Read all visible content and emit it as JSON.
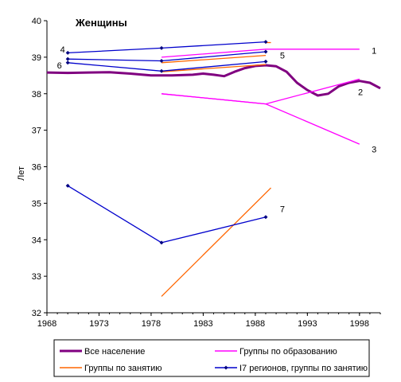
{
  "chart_data": {
    "type": "line",
    "title": "Женщины",
    "xlabel": "",
    "ylabel": "Лет",
    "xlim": [
      1968,
      2000
    ],
    "ylim": [
      32,
      40
    ],
    "x_ticks": [
      "1968",
      "1973",
      "1978",
      "1983",
      "1988",
      "1993",
      "1998"
    ],
    "y_ticks": [
      "32",
      "33",
      "34",
      "35",
      "36",
      "37",
      "38",
      "39",
      "40"
    ],
    "legend": {
      "position": "bottom",
      "entries": [
        {
          "label": "Все население",
          "color": "#800080",
          "marker": "none"
        },
        {
          "label": "Группы по образованию",
          "color": "#ff00ff",
          "marker": "none"
        },
        {
          "label": "Группы по занятию",
          "color": "#ff6600",
          "marker": "none"
        },
        {
          "label": "I7 регионов, группы по занятию",
          "color": "#0000cc",
          "marker": "diamond"
        }
      ]
    },
    "series": [
      {
        "group": "Все население",
        "color": "#800080",
        "width": 3,
        "markers": false,
        "points": [
          [
            1968,
            38.58
          ],
          [
            1970,
            38.57
          ],
          [
            1972,
            38.58
          ],
          [
            1974,
            38.59
          ],
          [
            1976,
            38.55
          ],
          [
            1978,
            38.5
          ],
          [
            1980,
            38.5
          ],
          [
            1982,
            38.52
          ],
          [
            1983,
            38.55
          ],
          [
            1984,
            38.52
          ],
          [
            1985,
            38.48
          ],
          [
            1986,
            38.6
          ],
          [
            1987,
            38.7
          ],
          [
            1988,
            38.76
          ],
          [
            1989,
            38.78
          ],
          [
            1990,
            38.75
          ],
          [
            1991,
            38.6
          ],
          [
            1992,
            38.3
          ],
          [
            1993,
            38.1
          ],
          [
            1994,
            37.95
          ],
          [
            1995,
            38.0
          ],
          [
            1996,
            38.2
          ],
          [
            1997,
            38.3
          ],
          [
            1998,
            38.35
          ],
          [
            1999,
            38.3
          ],
          [
            2000,
            38.15
          ]
        ]
      },
      {
        "group": "Группы по образованию",
        "color": "#ff00ff",
        "width": 1.3,
        "markers": false,
        "points": [
          [
            1979,
            39.0
          ],
          [
            1989,
            39.22
          ],
          [
            1998,
            39.22
          ]
        ]
      },
      {
        "group": "Группы по образованию",
        "color": "#ff00ff",
        "width": 1.3,
        "markers": false,
        "points": [
          [
            1979,
            38.0
          ],
          [
            1989,
            37.72
          ],
          [
            1998,
            38.4
          ]
        ]
      },
      {
        "group": "Группы по образованию",
        "color": "#ff00ff",
        "width": 1.3,
        "markers": false,
        "points": [
          [
            1979,
            38.0
          ],
          [
            1989,
            37.72
          ],
          [
            1998,
            36.62
          ]
        ]
      },
      {
        "group": "Группы по занятию",
        "color": "#ff6600",
        "width": 1.3,
        "markers": false,
        "points": [
          [
            1979,
            38.85
          ],
          [
            1989,
            39.05
          ]
        ]
      },
      {
        "group": "Группы по занятию",
        "color": "#ff6600",
        "width": 1.3,
        "markers": false,
        "points": [
          [
            1979,
            38.6
          ],
          [
            1989,
            38.8
          ]
        ]
      },
      {
        "group": "Группы по занятию",
        "color": "#ff6600",
        "width": 1.3,
        "markers": false,
        "points": [
          [
            1989,
            39.4
          ],
          [
            1989.5,
            39.4
          ]
        ]
      },
      {
        "group": "Группы по занятию",
        "color": "#ff6600",
        "width": 1.3,
        "markers": false,
        "points": [
          [
            1979,
            32.45
          ],
          [
            1989.5,
            35.42
          ]
        ]
      },
      {
        "group": "I7 регионов, группы по занятию",
        "color": "#0000cc",
        "width": 1.3,
        "markers": true,
        "points": [
          [
            1970,
            39.12
          ],
          [
            1979,
            39.25
          ],
          [
            1989,
            39.42
          ]
        ]
      },
      {
        "group": "I7 регионов, группы по занятию",
        "color": "#0000cc",
        "width": 1.3,
        "markers": true,
        "points": [
          [
            1970,
            38.95
          ],
          [
            1979,
            38.9
          ],
          [
            1989,
            39.15
          ]
        ]
      },
      {
        "group": "I7 регионов, группы по занятию",
        "color": "#0000cc",
        "width": 1.3,
        "markers": true,
        "points": [
          [
            1970,
            38.85
          ],
          [
            1979,
            38.62
          ],
          [
            1989,
            38.88
          ]
        ]
      },
      {
        "group": "I7 регионов, группы по занятию",
        "color": "#0000cc",
        "width": 1.3,
        "markers": true,
        "points": [
          [
            1970,
            35.48
          ],
          [
            1979,
            33.92
          ],
          [
            1989,
            34.62
          ]
        ]
      }
    ],
    "annotations": [
      {
        "text": "4",
        "x": 1969.5,
        "y": 39.22
      },
      {
        "text": "6",
        "x": 1969.2,
        "y": 38.78
      },
      {
        "text": "5",
        "x": 1990.6,
        "y": 39.05
      },
      {
        "text": "1",
        "x": 1999.4,
        "y": 39.18
      },
      {
        "text": "2",
        "x": 1998.1,
        "y": 38.05
      },
      {
        "text": "3",
        "x": 1999.4,
        "y": 36.48
      },
      {
        "text": "7",
        "x": 1990.6,
        "y": 34.85
      }
    ]
  }
}
